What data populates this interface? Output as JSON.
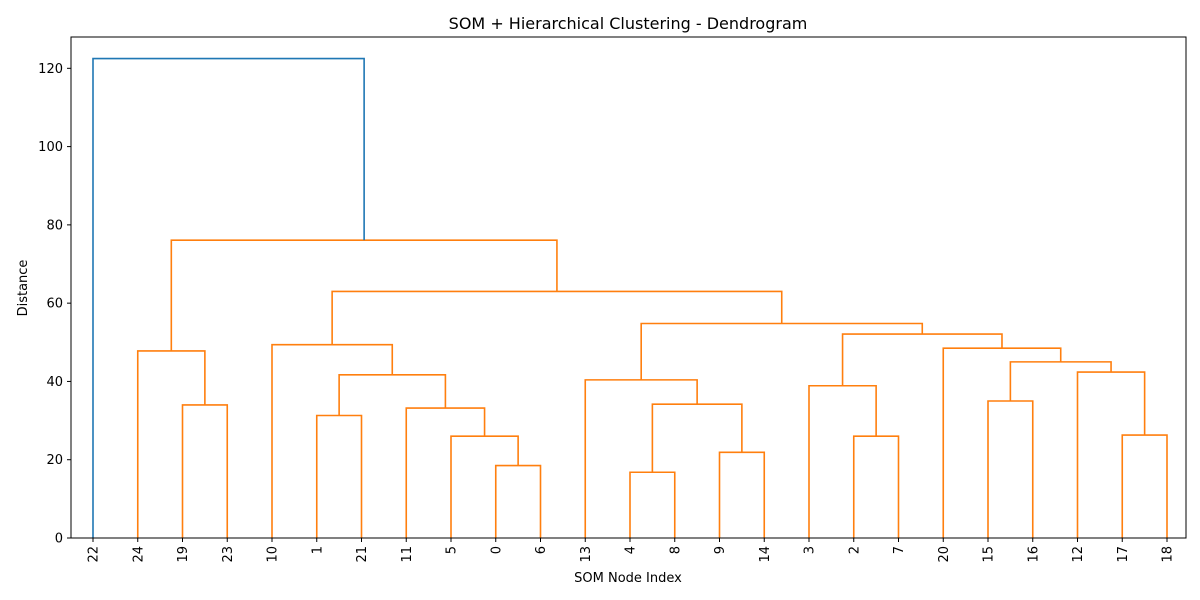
{
  "chart_data": {
    "type": "dendrogram",
    "title": "SOM + Hierarchical Clustering - Dendrogram",
    "xlabel": "SOM Node Index",
    "ylabel": "Distance",
    "ylim": [
      0,
      128
    ],
    "yticks": [
      0,
      20,
      40,
      60,
      80,
      100,
      120
    ],
    "grid": false,
    "leaf_order": [
      "22",
      "24",
      "19",
      "23",
      "10",
      "1",
      "21",
      "11",
      "5",
      "0",
      "6",
      "13",
      "4",
      "8",
      "9",
      "14",
      "3",
      "2",
      "7",
      "20",
      "15",
      "16",
      "12",
      "17",
      "18"
    ],
    "colors": {
      "above_threshold": "#1f77b4",
      "cluster": "#ff7f0e"
    },
    "merges": [
      {
        "id": "A",
        "left": "0",
        "right": "6",
        "height": 18.5,
        "color": "cluster"
      },
      {
        "id": "B",
        "left": "5",
        "right": "A",
        "height": 26.0,
        "color": "cluster"
      },
      {
        "id": "C",
        "left": "11",
        "right": "B",
        "height": 33.2,
        "color": "cluster"
      },
      {
        "id": "D",
        "left": "1",
        "right": "21",
        "height": 31.3,
        "color": "cluster"
      },
      {
        "id": "E",
        "left": "D",
        "right": "C",
        "height": 41.7,
        "color": "cluster"
      },
      {
        "id": "F",
        "left": "10",
        "right": "E",
        "height": 49.4,
        "color": "cluster"
      },
      {
        "id": "G",
        "left": "19",
        "right": "23",
        "height": 34.0,
        "color": "cluster"
      },
      {
        "id": "H",
        "left": "24",
        "right": "G",
        "height": 47.8,
        "color": "cluster"
      },
      {
        "id": "I",
        "left": "4",
        "right": "8",
        "height": 16.8,
        "color": "cluster"
      },
      {
        "id": "J",
        "left": "9",
        "right": "14",
        "height": 21.9,
        "color": "cluster"
      },
      {
        "id": "K",
        "left": "I",
        "right": "J",
        "height": 34.2,
        "color": "cluster"
      },
      {
        "id": "L",
        "left": "13",
        "right": "K",
        "height": 40.4,
        "color": "cluster"
      },
      {
        "id": "M",
        "left": "2",
        "right": "7",
        "height": 26.0,
        "color": "cluster"
      },
      {
        "id": "N",
        "left": "3",
        "right": "M",
        "height": 38.9,
        "color": "cluster"
      },
      {
        "id": "O",
        "left": "15",
        "right": "16",
        "height": 35.0,
        "color": "cluster"
      },
      {
        "id": "P",
        "left": "17",
        "right": "18",
        "height": 26.3,
        "color": "cluster"
      },
      {
        "id": "Q",
        "left": "12",
        "right": "P",
        "height": 42.4,
        "color": "cluster"
      },
      {
        "id": "R",
        "left": "O",
        "right": "Q",
        "height": 45.0,
        "color": "cluster"
      },
      {
        "id": "S",
        "left": "20",
        "right": "R",
        "height": 48.5,
        "color": "cluster"
      },
      {
        "id": "T",
        "left": "N",
        "right": "S",
        "height": 52.1,
        "color": "cluster"
      },
      {
        "id": "U",
        "left": "L",
        "right": "T",
        "height": 54.8,
        "color": "cluster"
      },
      {
        "id": "V",
        "left": "F",
        "right": "U",
        "height": 63.0,
        "color": "cluster"
      },
      {
        "id": "W",
        "left": "H",
        "right": "V",
        "height": 76.1,
        "color": "cluster"
      },
      {
        "id": "X",
        "left": "22",
        "right": "W",
        "height": 122.5,
        "color": "above_threshold"
      }
    ]
  }
}
